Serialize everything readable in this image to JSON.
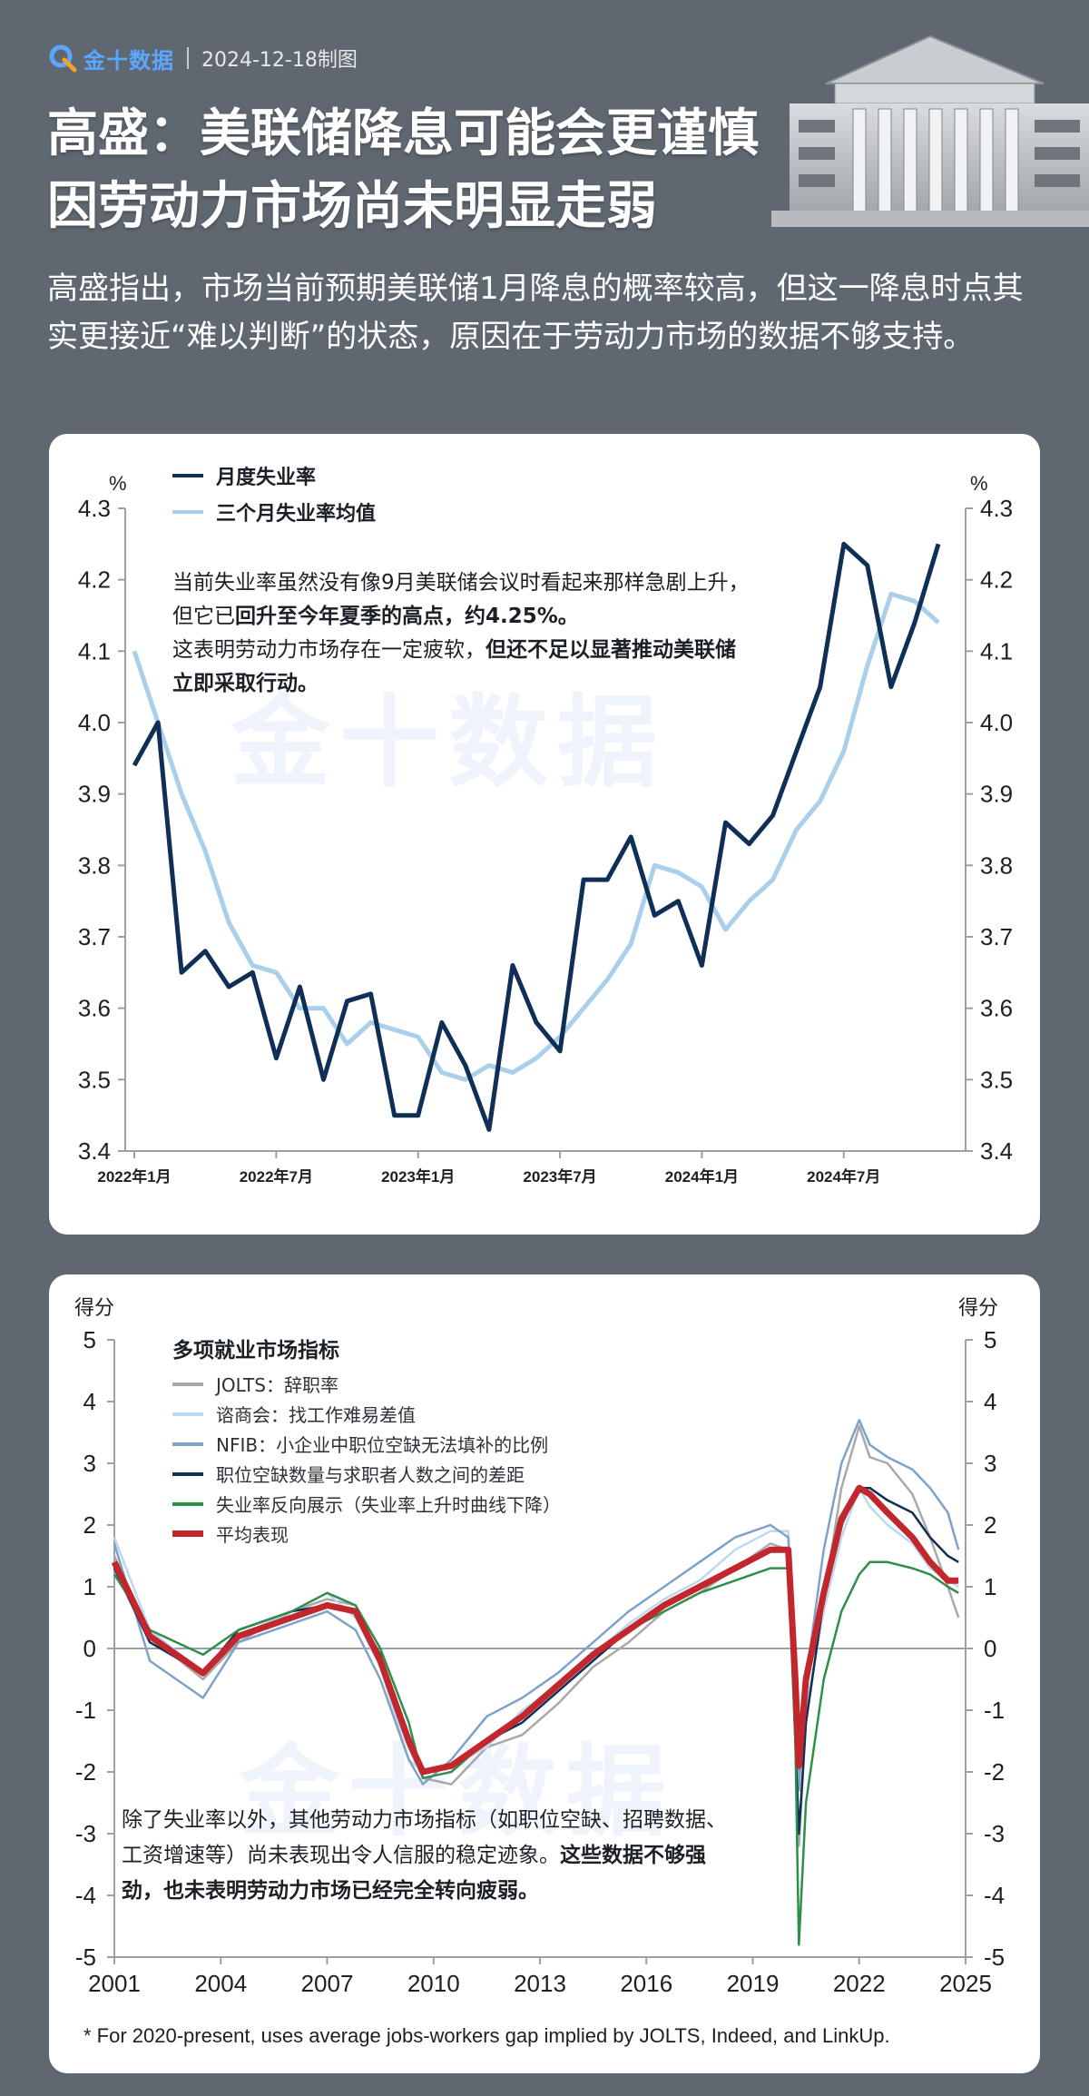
{
  "header": {
    "logo_text": "金十数据",
    "date_text": "2024-12-18制图",
    "title_line1": "高盛：美联储降息可能会更谨慎",
    "title_line2": "因劳动力市场尚未明显走弱",
    "intro": "高盛指出，市场当前预期美联储1月降息的概率较高，但这一降息时点其实更接近“难以判断”的状态，原因在于劳动力市场的数据不够支持。"
  },
  "colors": {
    "background": "#5f6770",
    "dark_navy": "#0f2f57",
    "light_blue": "#a9cfeb",
    "gray": "#a9a9a9",
    "pale_blue": "#bcd9f2",
    "steel_blue": "#7ea2c9",
    "green": "#2f8f4a",
    "red": "#c1272d",
    "logo_blue": "#5aa7ff"
  },
  "chart1": {
    "unit_left": "%",
    "unit_right": "%",
    "note": {
      "p1": "当前失业率虽然没有像9月美联储会议时看起来那样急剧上升，但它已",
      "b1": "回升至今年夏季的高点，约4.25%。",
      "p2": "这表明劳动力市场存在一定疲软，",
      "b2": "但还不足以显著推动美联储立即采取行动。"
    },
    "watermark": "金十数据"
  },
  "chart2": {
    "unit_left": "得分",
    "unit_right": "得分",
    "legend_title": "多项就业市场指标",
    "note": {
      "p1": "除了失业率以外，其他劳动力市场指标（如职位空缺、招聘数据、工资增速等）尚未表现出令人信服的稳定迹象。",
      "b1": "这些数据不够强劲，也未表明劳动力市场已经完全转向疲弱。"
    },
    "footnote": "* For 2020-present, uses average jobs-workers gap implied by JOLTS, Indeed, and LinkUp.",
    "watermark": "金十数据"
  },
  "chart_data": [
    {
      "type": "line",
      "x": [
        "2022-01",
        "2022-02",
        "2022-03",
        "2022-04",
        "2022-05",
        "2022-06",
        "2022-07",
        "2022-08",
        "2022-09",
        "2022-10",
        "2022-11",
        "2022-12",
        "2023-01",
        "2023-02",
        "2023-03",
        "2023-04",
        "2023-05",
        "2023-06",
        "2023-07",
        "2023-08",
        "2023-09",
        "2023-10",
        "2023-11",
        "2023-12",
        "2024-01",
        "2024-02",
        "2024-03",
        "2024-04",
        "2024-05",
        "2024-06",
        "2024-07",
        "2024-08",
        "2024-09",
        "2024-10",
        "2024-11"
      ],
      "xticks": [
        "2022年1月",
        "2022年7月",
        "2023年1月",
        "2023年7月",
        "2024年1月",
        "2024年7月"
      ],
      "ylim": [
        3.4,
        4.3
      ],
      "yticks": [
        "3.4",
        "3.5",
        "3.6",
        "3.7",
        "3.8",
        "3.9",
        "4.0",
        "4.1",
        "4.2",
        "4.3"
      ],
      "series": [
        {
          "name": "月度失业率",
          "color": "#0f2f57",
          "values": [
            3.94,
            4.0,
            3.65,
            3.68,
            3.63,
            3.65,
            3.53,
            3.63,
            3.5,
            3.61,
            3.62,
            3.45,
            3.45,
            3.58,
            3.52,
            3.43,
            3.66,
            3.58,
            3.54,
            3.78,
            3.78,
            3.84,
            3.73,
            3.75,
            3.66,
            3.86,
            3.83,
            3.87,
            3.96,
            4.05,
            4.25,
            4.22,
            4.05,
            4.14,
            4.25
          ]
        },
        {
          "name": "三个月失业率均值",
          "color": "#a9cfeb",
          "values": [
            4.1,
            4.0,
            3.9,
            3.82,
            3.72,
            3.66,
            3.65,
            3.6,
            3.6,
            3.55,
            3.58,
            3.57,
            3.56,
            3.51,
            3.5,
            3.52,
            3.51,
            3.53,
            3.56,
            3.6,
            3.64,
            3.69,
            3.8,
            3.79,
            3.77,
            3.71,
            3.75,
            3.78,
            3.85,
            3.89,
            3.96,
            4.08,
            4.18,
            4.17,
            4.14
          ]
        }
      ],
      "grid": false,
      "legend": "top-left"
    },
    {
      "type": "line",
      "x_range": [
        2001,
        2025
      ],
      "xticks": [
        "2001",
        "2004",
        "2007",
        "2010",
        "2013",
        "2016",
        "2019",
        "2022",
        "2025"
      ],
      "ylim": [
        -5,
        5
      ],
      "yticks": [
        "-5",
        "-4",
        "-3",
        "-2",
        "-1",
        "0",
        "1",
        "2",
        "3",
        "4",
        "5"
      ],
      "anchor_x": [
        2001.0,
        2002.0,
        2003.5,
        2004.5,
        2006.0,
        2007.0,
        2007.8,
        2008.5,
        2009.3,
        2009.7,
        2010.5,
        2011.5,
        2012.5,
        2013.5,
        2014.5,
        2015.5,
        2016.5,
        2017.5,
        2018.5,
        2019.5,
        2020.0,
        2020.2,
        2020.3,
        2020.5,
        2021.0,
        2021.5,
        2022.0,
        2022.3,
        2022.8,
        2023.5,
        2024.0,
        2024.5,
        2024.8
      ],
      "series": [
        {
          "name": "JOLTS：辞职率",
          "color": "#a9a9a9",
          "values": [
            1.5,
            0.2,
            -0.5,
            0.1,
            0.6,
            0.8,
            0.7,
            -0.3,
            -1.6,
            -2.1,
            -2.2,
            -1.6,
            -1.4,
            -0.9,
            -0.3,
            0.1,
            0.6,
            0.9,
            1.3,
            1.7,
            1.6,
            -1.2,
            -3.2,
            -1.2,
            0.8,
            2.6,
            3.6,
            3.1,
            3.0,
            2.5,
            1.8,
            1.0,
            0.5
          ]
        },
        {
          "name": "谘商会：找工作难易差值",
          "color": "#bcd9f2",
          "values": [
            1.8,
            0.3,
            -0.4,
            0.2,
            0.6,
            0.9,
            0.5,
            -0.3,
            -1.8,
            -2.0,
            -1.9,
            -1.6,
            -1.0,
            -0.6,
            -0.1,
            0.4,
            0.8,
            1.1,
            1.6,
            1.9,
            1.9,
            -0.5,
            -2.0,
            -1.0,
            0.6,
            1.8,
            2.6,
            2.3,
            2.0,
            1.7,
            1.3,
            1.1,
            1.0
          ]
        },
        {
          "name": "NFIB：小企业中职位空缺无法填补的比例",
          "color": "#7ea2c9",
          "values": [
            1.7,
            -0.2,
            -0.8,
            0.1,
            0.4,
            0.6,
            0.3,
            -0.5,
            -1.8,
            -2.2,
            -1.8,
            -1.1,
            -0.8,
            -0.4,
            0.1,
            0.6,
            1.0,
            1.4,
            1.8,
            2.0,
            1.8,
            -0.6,
            -2.3,
            -0.5,
            1.6,
            3.0,
            3.7,
            3.3,
            3.1,
            2.9,
            2.6,
            2.2,
            1.6
          ]
        },
        {
          "name": "职位空缺数量与求职者人数之间的差距",
          "color": "#0f2f57",
          "values": [
            1.3,
            0.1,
            -0.4,
            0.3,
            0.6,
            0.7,
            0.6,
            -0.1,
            -1.4,
            -2.0,
            -1.9,
            -1.5,
            -1.2,
            -0.7,
            -0.2,
            0.3,
            0.7,
            1.0,
            1.3,
            1.6,
            1.6,
            -1.5,
            -3.0,
            -1.2,
            0.8,
            2.0,
            2.6,
            2.6,
            2.4,
            2.2,
            1.8,
            1.5,
            1.4
          ]
        },
        {
          "name": "失业率反向展示（失业率上升时曲线下降）",
          "color": "#2f8f4a",
          "values": [
            1.2,
            0.3,
            -0.1,
            0.3,
            0.6,
            0.9,
            0.7,
            0.0,
            -1.2,
            -2.1,
            -2.0,
            -1.5,
            -1.1,
            -0.6,
            -0.1,
            0.3,
            0.6,
            0.9,
            1.1,
            1.3,
            1.3,
            -1.5,
            -4.8,
            -2.5,
            -0.5,
            0.6,
            1.2,
            1.4,
            1.4,
            1.3,
            1.2,
            1.0,
            0.9
          ]
        },
        {
          "name": "平均表现",
          "color": "#c1272d",
          "values": [
            1.4,
            0.2,
            -0.4,
            0.2,
            0.5,
            0.7,
            0.6,
            -0.2,
            -1.5,
            -2.0,
            -1.9,
            -1.5,
            -1.1,
            -0.6,
            -0.1,
            0.3,
            0.7,
            1.0,
            1.3,
            1.6,
            1.6,
            -0.5,
            -1.9,
            -0.5,
            0.9,
            2.1,
            2.6,
            2.5,
            2.2,
            1.8,
            1.4,
            1.1,
            1.1
          ]
        }
      ],
      "grid": false,
      "legend": "top-left"
    }
  ]
}
